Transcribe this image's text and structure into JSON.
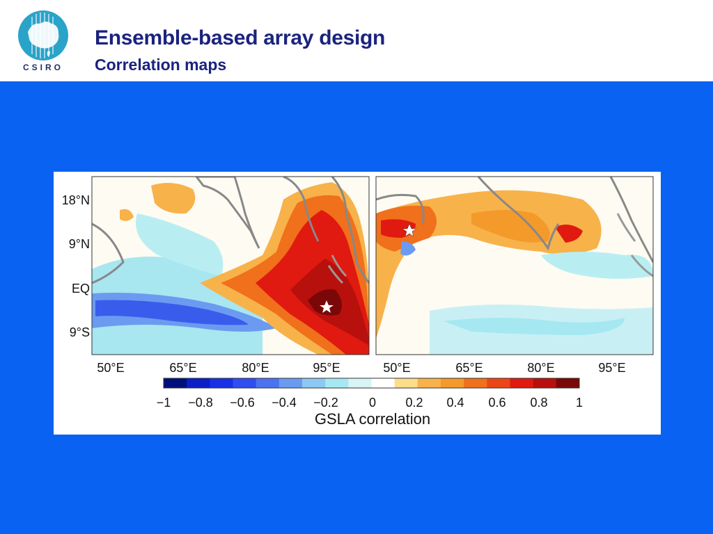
{
  "header": {
    "logo_text": "CSIRO",
    "title": "Ensemble-based array design",
    "subtitle": "Correlation maps"
  },
  "colors": {
    "slide_background": "#0a62f2",
    "title_color": "#1a237e",
    "logo_color": "#2aa3c9"
  },
  "figure": {
    "y_ticks": [
      "18°N",
      "9°N",
      "EQ",
      "9°S"
    ],
    "x_ticks_left": [
      "50°E",
      "65°E",
      "80°E",
      "95°E"
    ],
    "x_ticks_right": [
      "50°E",
      "65°E",
      "80°E",
      "95°E"
    ],
    "colorbar": {
      "tick_labels": [
        "−1",
        "−0.8",
        "−0.6",
        "−0.4",
        "−0.2",
        "0",
        "0.2",
        "0.4",
        "0.6",
        "0.8",
        "1"
      ],
      "label": "GSLA correlation",
      "colors": [
        "#00107a",
        "#0a1fc8",
        "#1830e6",
        "#2f4ef0",
        "#4b72f0",
        "#6b9bf0",
        "#8cc8f2",
        "#a6e8f2",
        "#d8f4f4",
        "#ffffff",
        "#fddc8a",
        "#f8b24a",
        "#f49a2a",
        "#f0701c",
        "#ec4616",
        "#e01a10",
        "#b8100c",
        "#7a0808"
      ]
    }
  }
}
